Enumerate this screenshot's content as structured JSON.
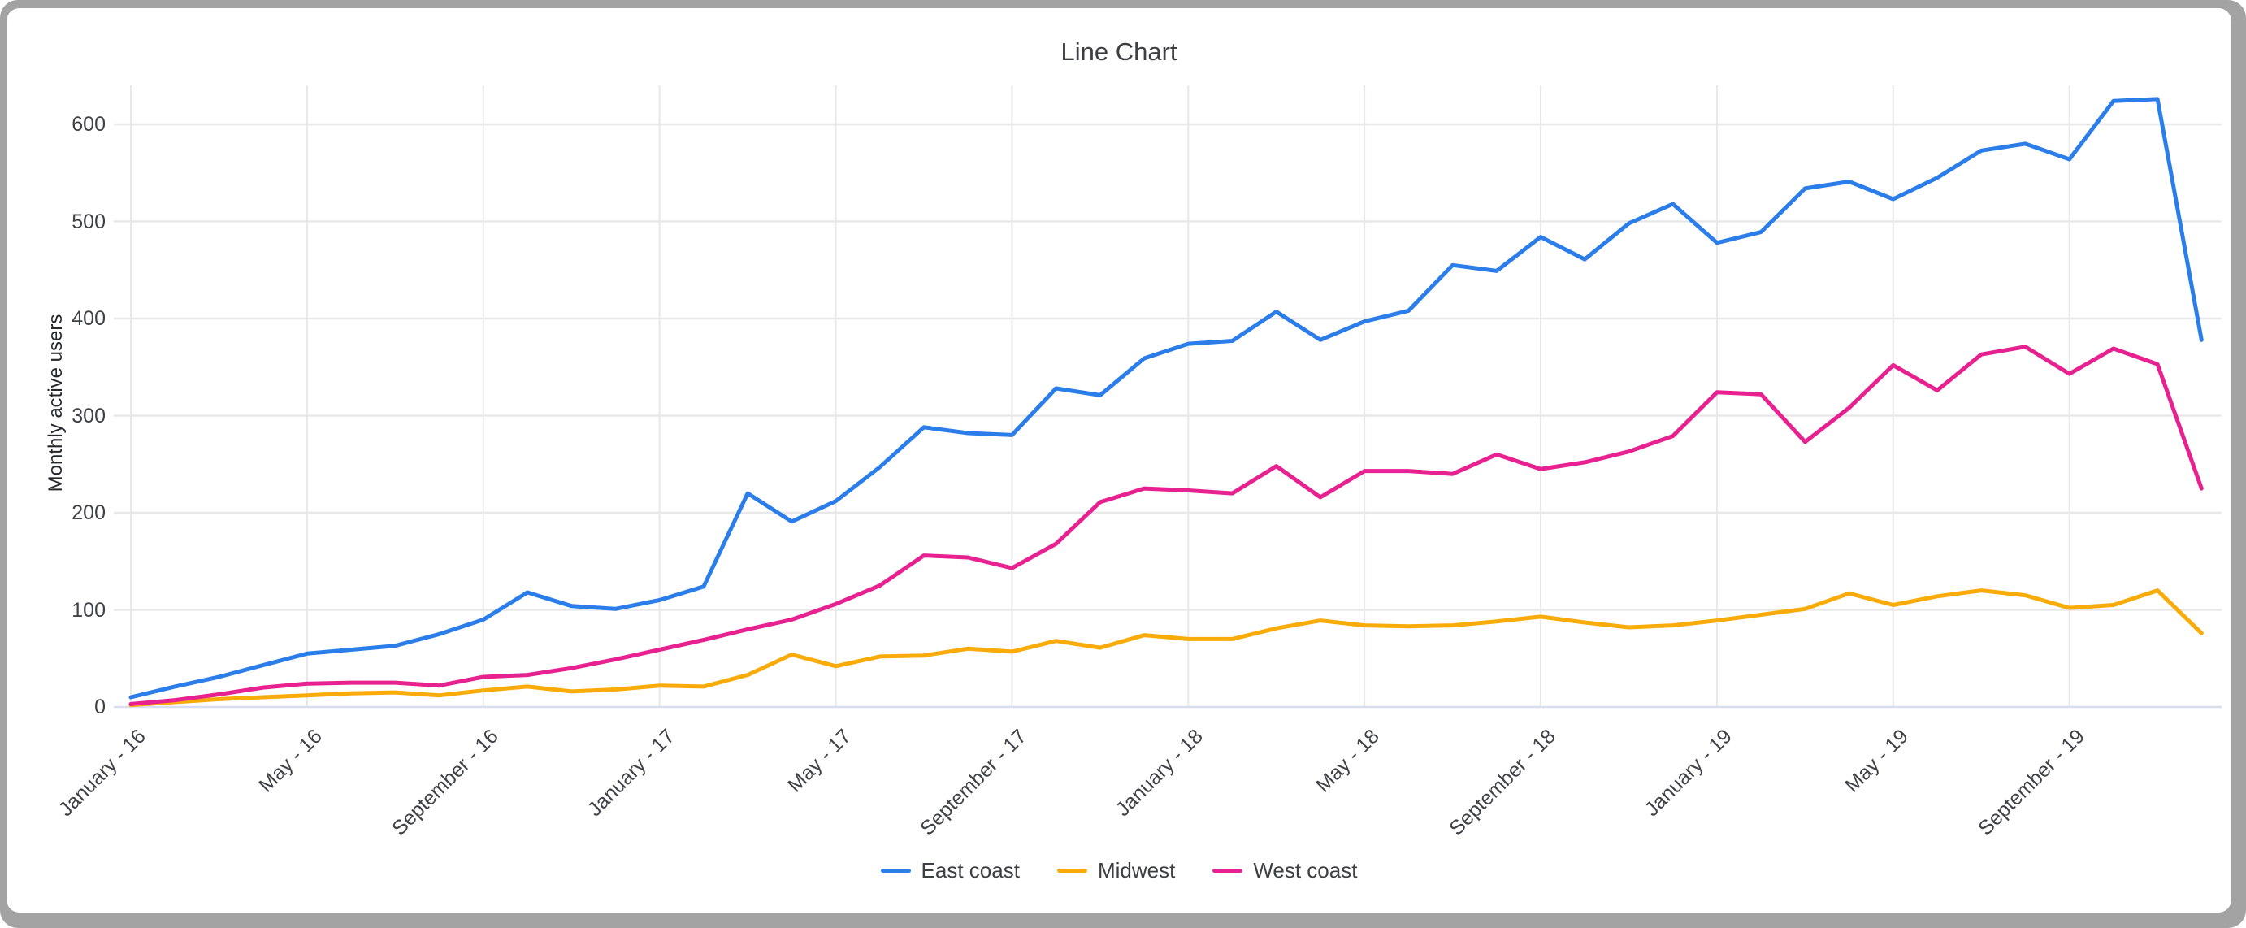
{
  "window": {
    "frame_color": "#a3a3a3",
    "card_color": "#ffffff"
  },
  "chart_data": {
    "type": "line",
    "title": "Line Chart",
    "xlabel": "",
    "ylabel": "Monthly active users",
    "ylim": [
      0,
      600
    ],
    "y_ticks": [
      0,
      100,
      200,
      300,
      400,
      500,
      600
    ],
    "n_points": 48,
    "x_tick_step": 4,
    "x_tick_labels": [
      "January - 16",
      "May - 16",
      "September - 16",
      "January - 17",
      "May - 17",
      "September - 17",
      "January - 18",
      "May - 18",
      "September - 18",
      "January - 19",
      "May - 19",
      "September - 19"
    ],
    "grid": true,
    "grid_color": "#e8e8e8",
    "axis_line_color": "#d8ddf0",
    "legend_position": "bottom",
    "series": [
      {
        "name": "East coast",
        "color": "#2b7de9",
        "values": [
          10,
          21,
          31,
          43,
          55,
          59,
          63,
          75,
          90,
          118,
          104,
          101,
          110,
          124,
          220,
          191,
          212,
          247,
          288,
          282,
          280,
          328,
          321,
          359,
          374,
          377,
          407,
          378,
          397,
          408,
          455,
          449,
          484,
          461,
          498,
          518,
          478,
          489,
          534,
          541,
          523,
          545,
          573,
          580,
          564,
          624,
          626,
          378
        ]
      },
      {
        "name": "Midwest",
        "color": "#f9ab09",
        "values": [
          2,
          5,
          8,
          10,
          12,
          14,
          15,
          12,
          17,
          21,
          16,
          18,
          22,
          21,
          33,
          54,
          42,
          52,
          53,
          60,
          57,
          68,
          61,
          74,
          70,
          70,
          81,
          89,
          84,
          83,
          84,
          88,
          93,
          87,
          82,
          84,
          89,
          95,
          101,
          117,
          105,
          114,
          120,
          115,
          102,
          105,
          120,
          76
        ]
      },
      {
        "name": "West coast",
        "color": "#e7218f",
        "values": [
          3,
          7,
          13,
          20,
          24,
          25,
          25,
          22,
          31,
          33,
          40,
          49,
          59,
          69,
          80,
          90,
          106,
          125,
          156,
          154,
          143,
          168,
          211,
          225,
          223,
          220,
          248,
          216,
          243,
          243,
          240,
          260,
          245,
          252,
          263,
          279,
          324,
          322,
          273,
          308,
          352,
          326,
          363,
          371,
          343,
          369,
          353,
          225
        ]
      }
    ]
  }
}
